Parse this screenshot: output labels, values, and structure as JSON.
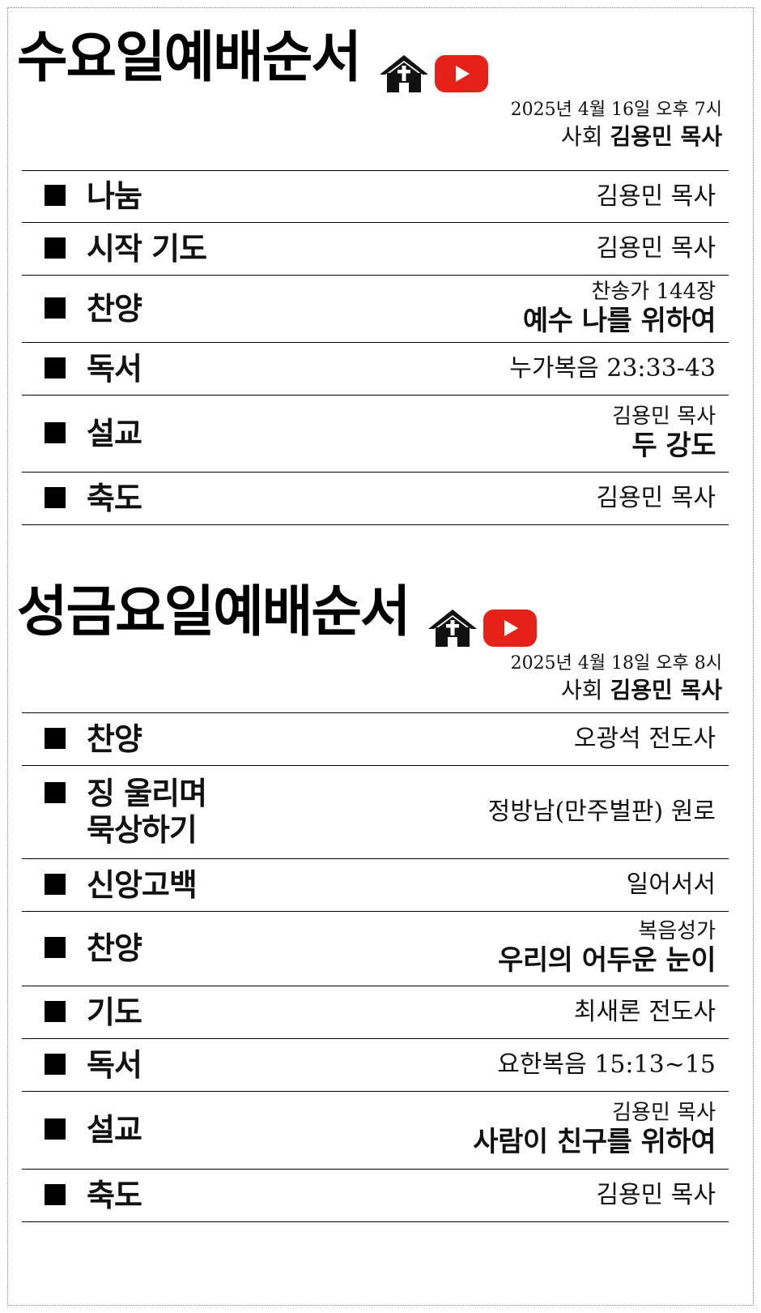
{
  "wednesday": {
    "title": "수요일예배순서",
    "date": "2025년 4월 16일 오후 7시",
    "leader_role": "사회",
    "leader_name": "김용민 목사",
    "items": [
      {
        "label": "나눔",
        "detail": "김용민 목사"
      },
      {
        "label": "시작 기도",
        "detail": "김용민 목사"
      },
      {
        "label": "찬양",
        "sub": "찬송가 144장",
        "main": "예수 나를 위하여"
      },
      {
        "label": "독서",
        "detail": "누가복음 23:33-43"
      },
      {
        "label": "설교",
        "sub": "김용민 목사",
        "main": "두 강도"
      },
      {
        "label": "축도",
        "detail": "김용민 목사"
      }
    ]
  },
  "good_friday": {
    "title": "성금요일예배순서",
    "date": "2025년 4월 18일 오후 8시",
    "leader_role": "사회",
    "leader_name": "김용민 목사",
    "items": [
      {
        "label": "찬양",
        "detail": "오광석 전도사"
      },
      {
        "label_line1": "징 울리며",
        "label_line2": "묵상하기",
        "detail": "정방남(만주벌판) 원로"
      },
      {
        "label": "신앙고백",
        "detail": "일어서서"
      },
      {
        "label": "찬양",
        "sub": "복음성가",
        "main": "우리의 어두운 눈이"
      },
      {
        "label": "기도",
        "detail": "최새론 전도사"
      },
      {
        "label": "독서",
        "detail": "요한복음 15:13~15"
      },
      {
        "label": "설교",
        "sub": "김용민 목사",
        "main": "사람이 친구를 위하여"
      },
      {
        "label": "축도",
        "detail": "김용민 목사"
      }
    ]
  },
  "icons": {
    "church": "church-icon",
    "youtube": "youtube-icon"
  },
  "colors": {
    "youtube_red": "#e62117",
    "text": "#111111",
    "background": "#ffffff"
  }
}
